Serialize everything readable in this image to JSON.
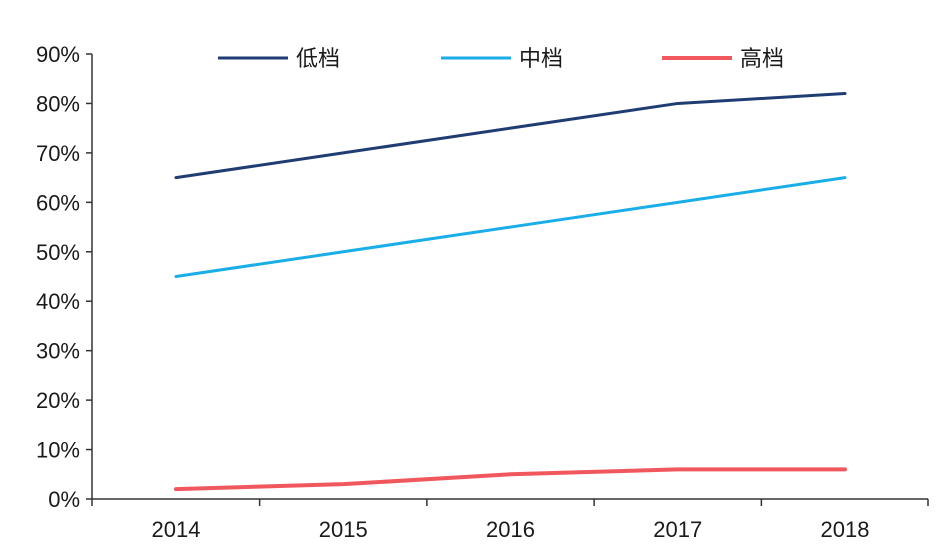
{
  "chart_data": {
    "type": "line",
    "title": "",
    "xlabel": "",
    "ylabel": "",
    "x": [
      "2014",
      "2015",
      "2016",
      "2017",
      "2018"
    ],
    "ylim": [
      0,
      90
    ],
    "y_ticks": [
      "0%",
      "10%",
      "20%",
      "30%",
      "40%",
      "50%",
      "60%",
      "70%",
      "80%",
      "90%"
    ],
    "y_tick_values": [
      0,
      10,
      20,
      30,
      40,
      50,
      60,
      70,
      80,
      90
    ],
    "grid": false,
    "legend_position": "top",
    "series": [
      {
        "name": "低档",
        "color": "#1f3d73",
        "values": [
          65,
          70,
          75,
          80,
          82
        ]
      },
      {
        "name": "中档",
        "color": "#1aaee8",
        "values": [
          45,
          50,
          55,
          60,
          65
        ]
      },
      {
        "name": "高档",
        "color": "#f0585e",
        "values": [
          2,
          3,
          5,
          6,
          6
        ]
      }
    ]
  }
}
